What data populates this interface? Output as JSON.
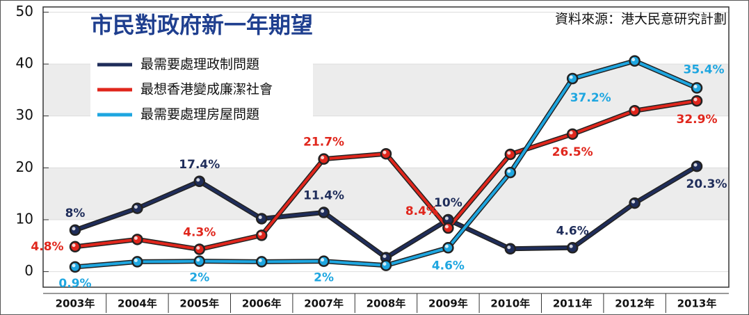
{
  "chart_data": {
    "type": "line",
    "title": "市民對政府新一年期望",
    "source": "資料來源：港大民意研究計劃",
    "categories": [
      "2003年",
      "2004年",
      "2005年",
      "2006年",
      "2007年",
      "2008年",
      "2009年",
      "2010年",
      "2011年",
      "2012年",
      "2013年"
    ],
    "series": [
      {
        "name": "最需要處理政制問題",
        "color": "#1f2d5a",
        "values": [
          8,
          12.2,
          17.4,
          10.2,
          11.4,
          2.7,
          10,
          4.4,
          4.6,
          13.2,
          20.3
        ],
        "value_labels": [
          "8%",
          null,
          "17.4%",
          null,
          "11.4%",
          null,
          "10%",
          null,
          "4.6%",
          null,
          "20.3%"
        ]
      },
      {
        "name": "最想香港變成廉潔社會",
        "color": "#e0261c",
        "values": [
          4.8,
          6.2,
          4.3,
          7.0,
          21.7,
          22.7,
          8.4,
          22.6,
          26.5,
          31.0,
          32.9
        ],
        "value_labels": [
          "4.8%",
          null,
          "4.3%",
          null,
          "21.7%",
          null,
          "8.4%",
          null,
          "26.5%",
          null,
          "32.9%"
        ]
      },
      {
        "name": "最需要處理房屋問題",
        "color": "#1ea6e0",
        "values": [
          0.9,
          1.9,
          2,
          1.9,
          2,
          1.2,
          4.6,
          19.1,
          37.2,
          40.6,
          35.4
        ],
        "value_labels": [
          "0.9%",
          null,
          "2%",
          null,
          "2%",
          null,
          "4.6%",
          null,
          "37.2%",
          null,
          "35.4%"
        ]
      }
    ],
    "ylim": [
      -3,
      51
    ],
    "yticks": [
      0,
      10,
      20,
      30,
      40,
      50
    ],
    "bands": true
  }
}
